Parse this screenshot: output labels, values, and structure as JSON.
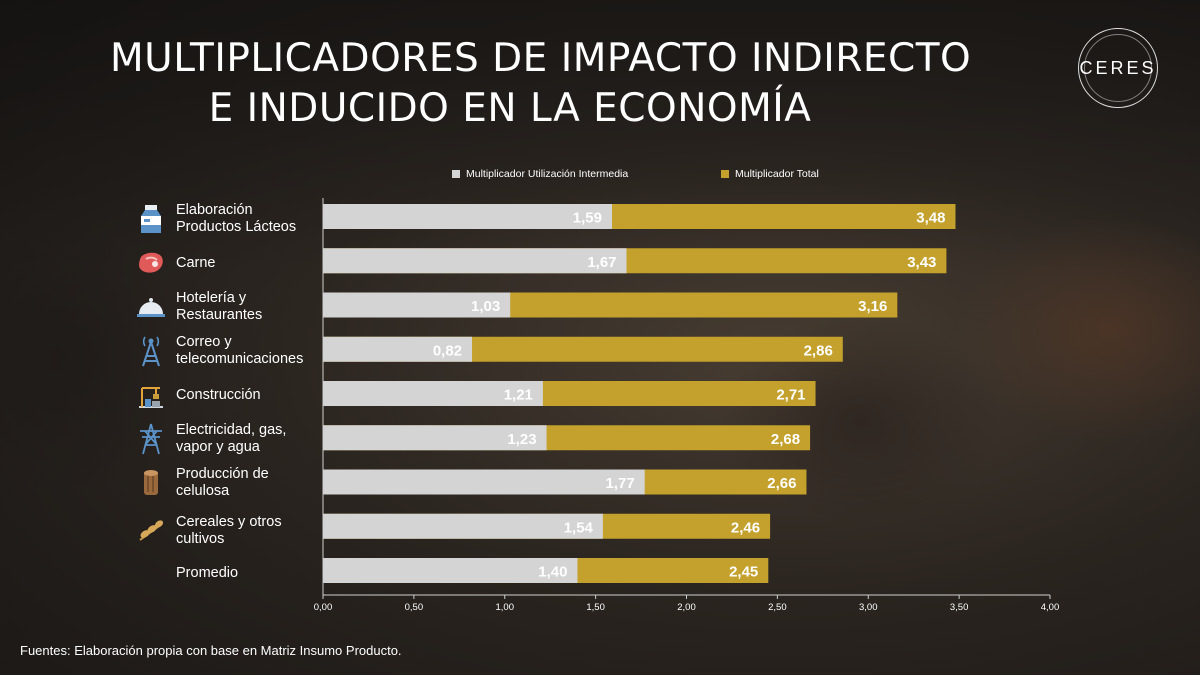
{
  "title_lines": [
    "MULTIPLICADORES DE IMPACTO INDIRECTO",
    "E INDUCIDO EN LA ECONOMÍA"
  ],
  "logo_text": "CERES",
  "source": "Fuentes: Elaboración propia con base en Matriz Insumo Producto.",
  "colors": {
    "intermediate": "#d4d4d4",
    "total": "#c4a12c"
  },
  "chart_data": {
    "type": "bar",
    "orientation": "horizontal",
    "categories": [
      [
        "Elaboración",
        "Productos Lácteos"
      ],
      [
        "Carne"
      ],
      [
        "Hotelería y",
        "Restaurantes"
      ],
      [
        "Correo y",
        "telecomunicaciones"
      ],
      [
        "Construcción"
      ],
      [
        "Electricidad, gas,",
        "vapor y agua"
      ],
      [
        "Producción de",
        "celulosa"
      ],
      [
        "Cereales y otros",
        "cultivos"
      ],
      [
        "Promedio"
      ]
    ],
    "category_icons": [
      "milk-carton-icon",
      "meat-icon",
      "cloche-icon",
      "antenna-tower-icon",
      "construction-icon",
      "power-tower-icon",
      "wood-log-icon",
      "grain-icon",
      null
    ],
    "series": [
      {
        "name": "Multiplicador Utilización Intermedia",
        "values": [
          1.59,
          1.67,
          1.03,
          0.82,
          1.21,
          1.23,
          1.77,
          1.54,
          1.4
        ],
        "labels": [
          "1,59",
          "1,67",
          "1,03",
          "0,82",
          "1,21",
          "1,23",
          "1,77",
          "1,54",
          "1,40"
        ]
      },
      {
        "name": "Multiplicador Total",
        "values": [
          3.48,
          3.43,
          3.16,
          2.86,
          2.71,
          2.68,
          2.66,
          2.46,
          2.45
        ],
        "labels": [
          "3,48",
          "3,43",
          "3,16",
          "2,86",
          "2,71",
          "2,68",
          "2,66",
          "2,46",
          "2,45"
        ]
      }
    ],
    "xlim": [
      0,
      4
    ],
    "xticks": [
      0,
      0.5,
      1,
      1.5,
      2,
      2.5,
      3,
      3.5,
      4
    ],
    "xtick_labels": [
      "0,00",
      "0,50",
      "1,00",
      "1,50",
      "2,00",
      "2,50",
      "3,00",
      "3,50",
      "4,00"
    ],
    "legend_position": "top",
    "grid": false
  }
}
